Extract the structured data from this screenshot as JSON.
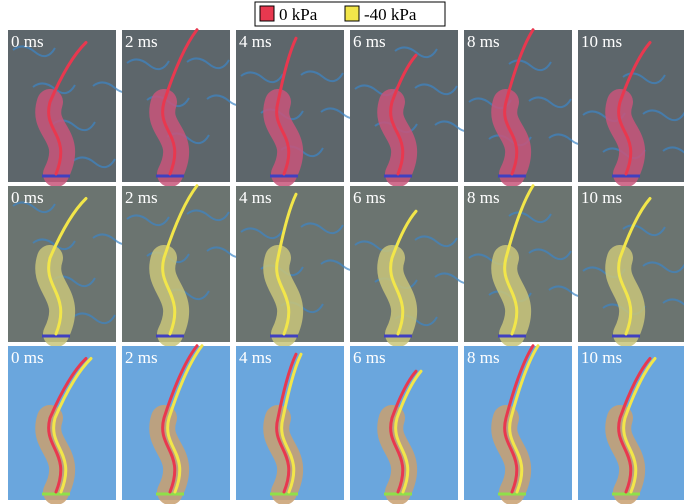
{
  "legend": [
    {
      "label": "0  kPa",
      "color": "#e8384f"
    },
    {
      "label": "-40 kPa",
      "color": "#f2e64a"
    }
  ],
  "panel_labels": [
    [
      "0 ms",
      "2 ms",
      "4 ms",
      "6 ms",
      "8 ms",
      "10 ms"
    ],
    [
      "0 ms",
      "2 ms",
      "4 ms",
      "6 ms",
      "8 ms",
      "10 ms"
    ],
    [
      "0 ms",
      "2 ms",
      "4 ms",
      "6 ms",
      "8 ms",
      "10 ms"
    ]
  ]
}
